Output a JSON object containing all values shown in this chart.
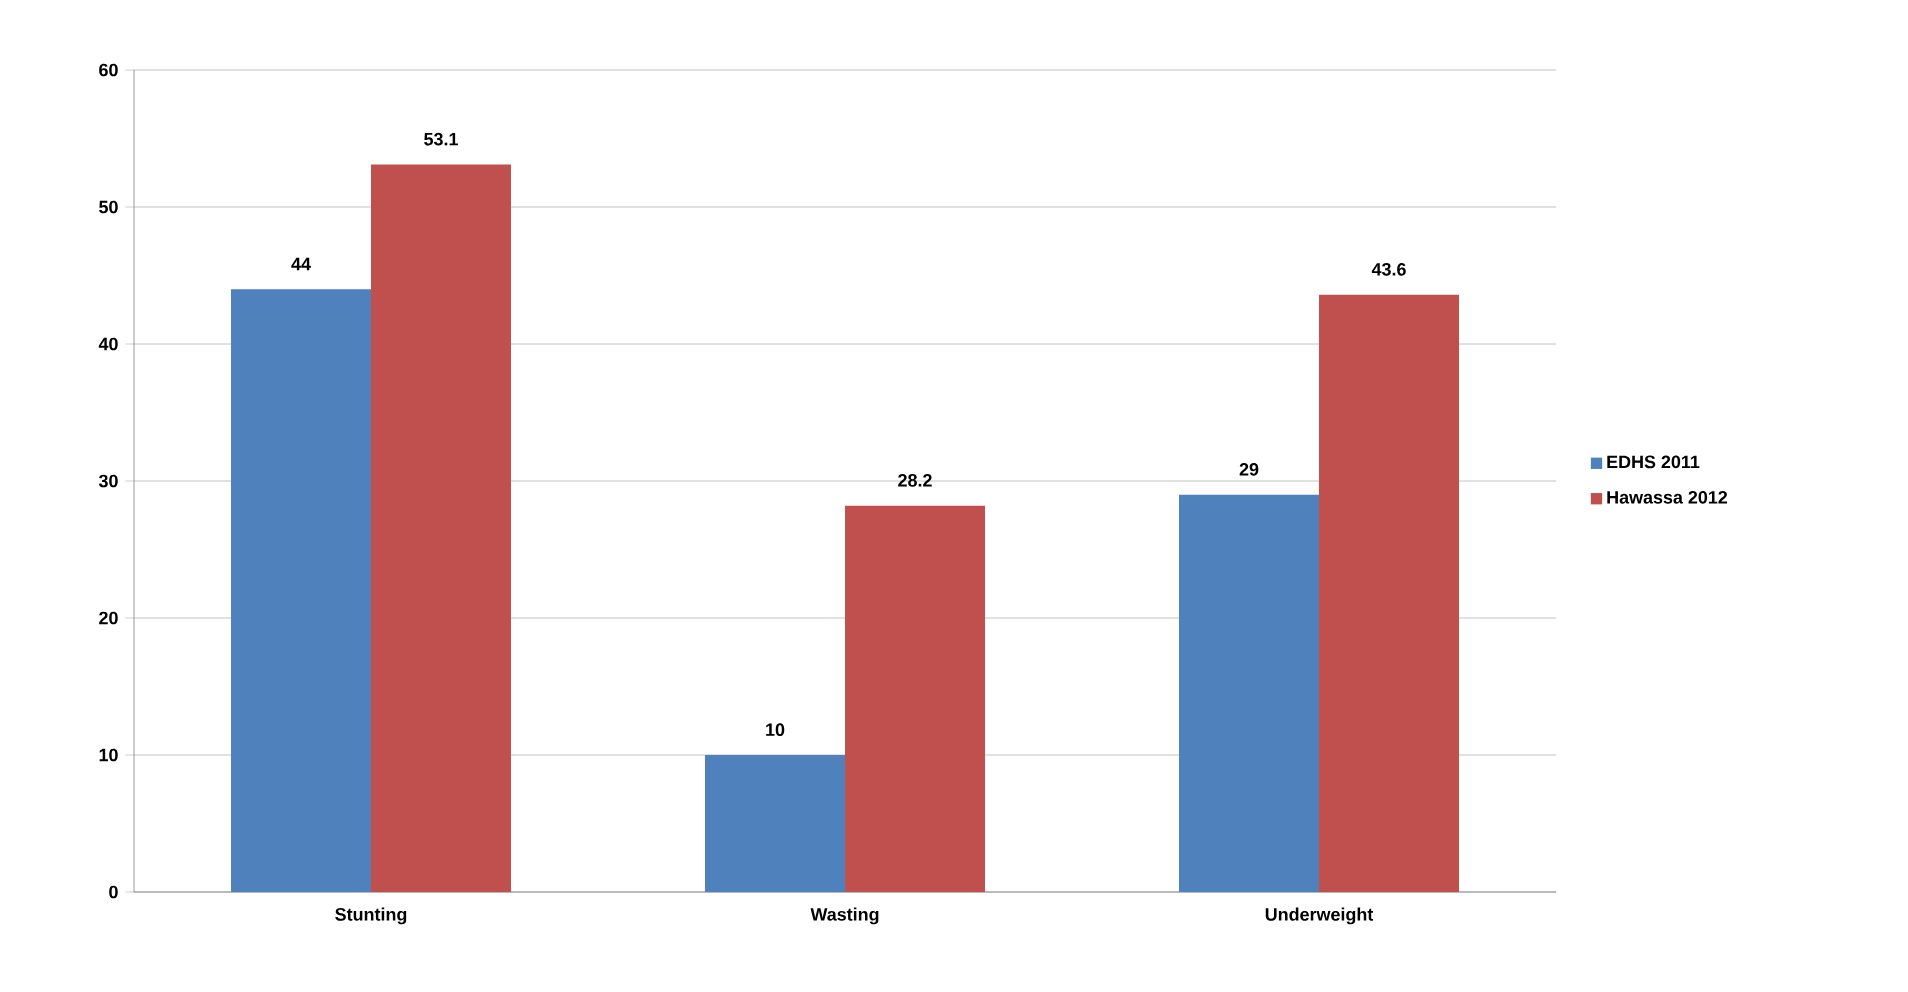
{
  "chart_data": {
    "type": "bar",
    "categories": [
      "Stunting",
      "Wasting",
      "Underweight"
    ],
    "series": [
      {
        "name": "EDHS 2011",
        "color": "#4f81bd",
        "values": [
          44,
          10,
          29
        ]
      },
      {
        "name": "Hawassa 2012",
        "color": "#c0504d",
        "values": [
          53.1,
          28.2,
          43.6
        ]
      }
    ],
    "ylim": [
      0,
      60
    ],
    "yticks": [
      0,
      10,
      20,
      30,
      40,
      50,
      60
    ],
    "grid": "y",
    "legend": "right",
    "data_labels": true
  }
}
